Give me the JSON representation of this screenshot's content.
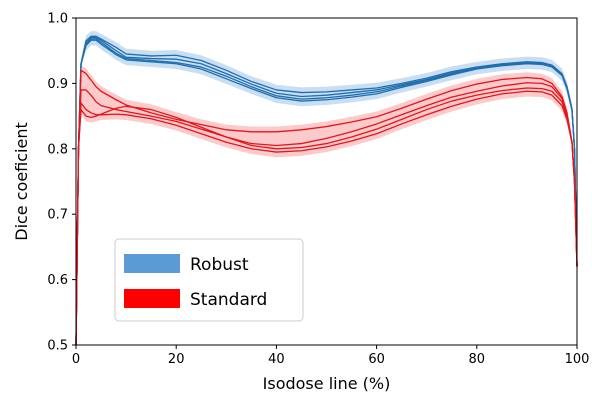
{
  "chart_data": {
    "type": "line",
    "xlabel": "Isodose line (%)",
    "ylabel": "Dice coeficient",
    "xlim": [
      0,
      100
    ],
    "ylim": [
      0.5,
      1.0
    ],
    "x_ticks": [
      0,
      20,
      40,
      60,
      80,
      100
    ],
    "y_ticks": [
      0.5,
      0.6,
      0.7,
      0.8,
      0.9,
      1.0
    ],
    "x_tick_labels": [
      "0",
      "20",
      "40",
      "60",
      "80",
      "100"
    ],
    "y_tick_labels": [
      "0.5",
      "0.6",
      "0.7",
      "0.8",
      "0.9",
      "1.0"
    ],
    "grid": false,
    "legend_position": "lower-left",
    "legend": [
      {
        "label": "Robust",
        "color": "#5b9bd5"
      },
      {
        "label": "Standard",
        "color": "#ff0000"
      }
    ],
    "series": [
      {
        "group": "Robust",
        "color": "#1f6fb0",
        "band_color": "#9cc3e6",
        "x": [
          0,
          0.5,
          1,
          2,
          3,
          4,
          5,
          8,
          10,
          15,
          20,
          25,
          30,
          35,
          40,
          45,
          50,
          55,
          60,
          65,
          70,
          75,
          80,
          85,
          90,
          93,
          95,
          97,
          98,
          99,
          99.5,
          100
        ],
        "lines": [
          [
            0.5,
            0.8,
            0.93,
            0.965,
            0.972,
            0.972,
            0.968,
            0.955,
            0.945,
            0.942,
            0.943,
            0.935,
            0.92,
            0.903,
            0.89,
            0.886,
            0.887,
            0.89,
            0.893,
            0.9,
            0.908,
            0.918,
            0.925,
            0.93,
            0.933,
            0.932,
            0.928,
            0.915,
            0.895,
            0.86,
            0.8,
            0.62
          ],
          [
            0.5,
            0.8,
            0.93,
            0.962,
            0.97,
            0.97,
            0.966,
            0.95,
            0.94,
            0.938,
            0.937,
            0.93,
            0.915,
            0.899,
            0.885,
            0.88,
            0.882,
            0.886,
            0.89,
            0.898,
            0.906,
            0.916,
            0.924,
            0.929,
            0.932,
            0.931,
            0.927,
            0.914,
            0.894,
            0.86,
            0.8,
            0.62
          ],
          [
            0.5,
            0.8,
            0.93,
            0.96,
            0.968,
            0.968,
            0.963,
            0.946,
            0.938,
            0.935,
            0.932,
            0.925,
            0.911,
            0.895,
            0.881,
            0.876,
            0.878,
            0.882,
            0.887,
            0.896,
            0.905,
            0.914,
            0.923,
            0.928,
            0.931,
            0.93,
            0.926,
            0.913,
            0.893,
            0.86,
            0.8,
            0.62
          ],
          [
            0.5,
            0.8,
            0.93,
            0.958,
            0.966,
            0.966,
            0.96,
            0.944,
            0.936,
            0.933,
            0.93,
            0.922,
            0.907,
            0.892,
            0.878,
            0.873,
            0.875,
            0.879,
            0.884,
            0.894,
            0.903,
            0.913,
            0.922,
            0.927,
            0.93,
            0.929,
            0.925,
            0.912,
            0.892,
            0.86,
            0.8,
            0.62
          ]
        ]
      },
      {
        "group": "Standard",
        "color": "#e8141c",
        "band_color": "#f7a0a0",
        "x": [
          0,
          0.5,
          1,
          2,
          3,
          4,
          5,
          8,
          10,
          15,
          20,
          25,
          30,
          35,
          40,
          45,
          50,
          55,
          60,
          65,
          70,
          75,
          80,
          85,
          90,
          93,
          95,
          97,
          98,
          99,
          99.5,
          100
        ],
        "lines": [
          [
            0.5,
            0.8,
            0.92,
            0.915,
            0.905,
            0.895,
            0.888,
            0.875,
            0.867,
            0.855,
            0.845,
            0.837,
            0.829,
            0.826,
            0.826,
            0.829,
            0.834,
            0.841,
            0.849,
            0.862,
            0.876,
            0.889,
            0.899,
            0.906,
            0.909,
            0.907,
            0.9,
            0.88,
            0.855,
            0.81,
            0.75,
            0.62
          ],
          [
            0.5,
            0.8,
            0.89,
            0.89,
            0.882,
            0.872,
            0.866,
            0.86,
            0.857,
            0.85,
            0.842,
            0.83,
            0.818,
            0.808,
            0.805,
            0.808,
            0.816,
            0.826,
            0.838,
            0.852,
            0.866,
            0.879,
            0.888,
            0.896,
            0.901,
            0.9,
            0.895,
            0.877,
            0.852,
            0.81,
            0.75,
            0.62
          ],
          [
            0.5,
            0.8,
            0.86,
            0.85,
            0.848,
            0.85,
            0.853,
            0.862,
            0.865,
            0.86,
            0.848,
            0.833,
            0.818,
            0.805,
            0.8,
            0.802,
            0.808,
            0.818,
            0.83,
            0.845,
            0.86,
            0.873,
            0.882,
            0.889,
            0.893,
            0.892,
            0.888,
            0.872,
            0.85,
            0.81,
            0.75,
            0.62
          ],
          [
            0.5,
            0.8,
            0.87,
            0.86,
            0.855,
            0.852,
            0.852,
            0.853,
            0.852,
            0.846,
            0.836,
            0.823,
            0.81,
            0.8,
            0.795,
            0.797,
            0.803,
            0.812,
            0.823,
            0.838,
            0.852,
            0.865,
            0.876,
            0.884,
            0.888,
            0.887,
            0.882,
            0.866,
            0.845,
            0.81,
            0.75,
            0.62
          ]
        ]
      }
    ]
  }
}
